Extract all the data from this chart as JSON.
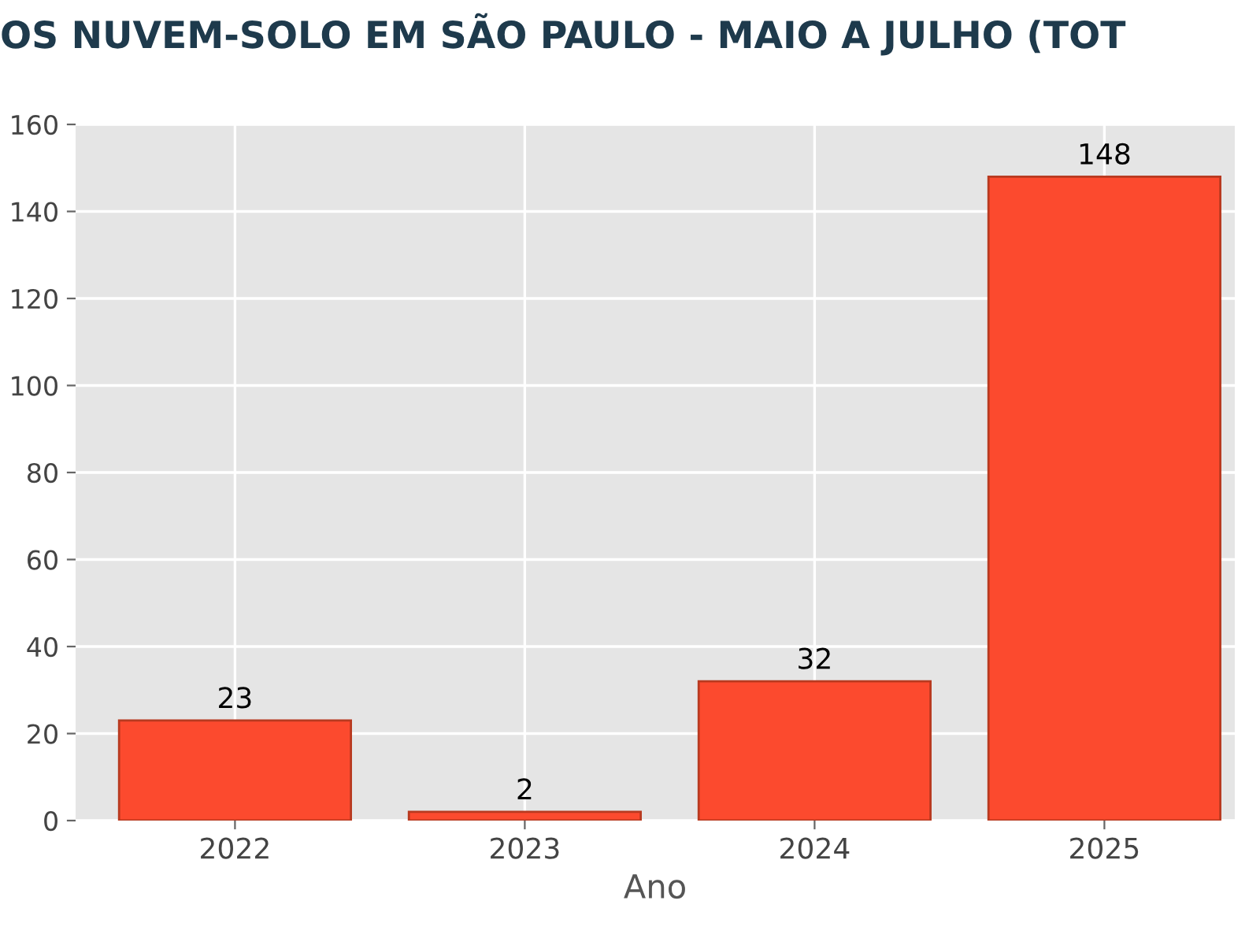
{
  "chart_data": {
    "type": "bar",
    "title": "OS NUVEM-SOLO EM SÃO PAULO - MAIO A JULHO (TOT",
    "xlabel": "Ano",
    "categories": [
      "2022",
      "2023",
      "2024",
      "2025"
    ],
    "values": [
      23,
      2,
      32,
      148
    ],
    "color": "#fc4a2e",
    "value_labels": [
      "23",
      "2",
      "32",
      "148"
    ],
    "ylim": [
      0,
      160
    ],
    "yticks": [
      0,
      20,
      40,
      60,
      80,
      100,
      120,
      140,
      160
    ],
    "grid": true
  }
}
